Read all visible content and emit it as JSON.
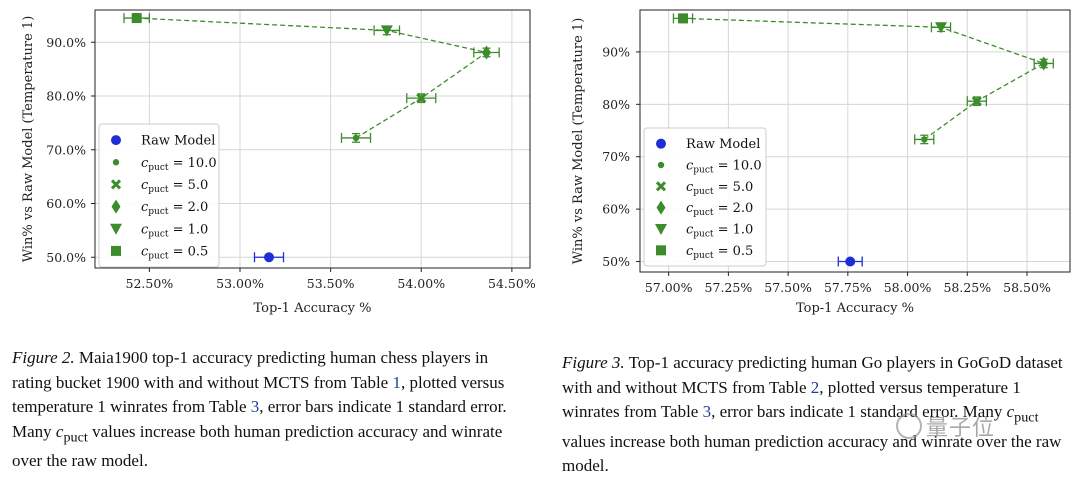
{
  "chart_data": [
    {
      "type": "scatter",
      "xlabel": "Top-1 Accuracy %",
      "ylabel": "Win% vs Raw Model (Temperature 1)",
      "xlim": [
        52.2,
        54.6
      ],
      "ylim": [
        48,
        96
      ],
      "x_ticks": [
        52.5,
        53.0,
        53.5,
        54.0,
        54.5
      ],
      "x_tick_labels": [
        "52.50%",
        "53.00%",
        "53.50%",
        "54.00%",
        "54.50%"
      ],
      "y_ticks": [
        50,
        60,
        70,
        80,
        90
      ],
      "y_tick_labels": [
        "50.0%",
        "60.0%",
        "70.0%",
        "80.0%",
        "90.0%"
      ],
      "grid": true,
      "legend_position": "lower-left",
      "raw_model": {
        "name": "Raw Model",
        "x": 53.16,
        "y": 50.0,
        "xerr": 0.08,
        "color": "#1f2fd6"
      },
      "series": [
        {
          "name_prefix": "c",
          "name_sub": "puct",
          "name_value": "= 10.0",
          "marker": "dot",
          "x": 53.64,
          "y": 72.2,
          "xerr": 0.08,
          "yerr": 0.8
        },
        {
          "name_prefix": "c",
          "name_sub": "puct",
          "name_value": "= 5.0",
          "marker": "x",
          "x": 54.0,
          "y": 79.6,
          "xerr": 0.08,
          "yerr": 0.8
        },
        {
          "name_prefix": "c",
          "name_sub": "puct",
          "name_value": "= 2.0",
          "marker": "diamond",
          "x": 54.36,
          "y": 88.1,
          "xerr": 0.07,
          "yerr": 0.8
        },
        {
          "name_prefix": "c",
          "name_sub": "puct",
          "name_value": "= 1.0",
          "marker": "triangle",
          "x": 53.81,
          "y": 92.2,
          "xerr": 0.07,
          "yerr": 0.8
        },
        {
          "name_prefix": "c",
          "name_sub": "puct",
          "name_value": "= 0.5",
          "marker": "square",
          "x": 52.43,
          "y": 94.5,
          "xerr": 0.07,
          "yerr": 0.8
        }
      ],
      "series_color": "#3d8c2c"
    },
    {
      "type": "scatter",
      "xlabel": "Top-1 Accuracy %",
      "ylabel": "Win% vs Raw Model (Temperature 1)",
      "xlim": [
        56.88,
        58.68
      ],
      "ylim": [
        48,
        98
      ],
      "x_ticks": [
        57.0,
        57.25,
        57.5,
        57.75,
        58.0,
        58.25,
        58.5
      ],
      "x_tick_labels": [
        "57.00%",
        "57.25%",
        "57.50%",
        "57.75%",
        "58.00%",
        "58.25%",
        "58.50%"
      ],
      "y_ticks": [
        50,
        60,
        70,
        80,
        90
      ],
      "y_tick_labels": [
        "50%",
        "60%",
        "70%",
        "80%",
        "90%"
      ],
      "grid": true,
      "legend_position": "lower-left",
      "raw_model": {
        "name": "Raw Model",
        "x": 57.76,
        "y": 50.0,
        "xerr": 0.05,
        "color": "#1f2fd6"
      },
      "series": [
        {
          "name_prefix": "c",
          "name_sub": "puct",
          "name_value": "= 10.0",
          "marker": "dot",
          "x": 58.07,
          "y": 73.3,
          "xerr": 0.04,
          "yerr": 0.8
        },
        {
          "name_prefix": "c",
          "name_sub": "puct",
          "name_value": "= 5.0",
          "marker": "x",
          "x": 58.29,
          "y": 80.6,
          "xerr": 0.04,
          "yerr": 0.8
        },
        {
          "name_prefix": "c",
          "name_sub": "puct",
          "name_value": "= 2.0",
          "marker": "diamond",
          "x": 58.57,
          "y": 87.8,
          "xerr": 0.04,
          "yerr": 0.8
        },
        {
          "name_prefix": "c",
          "name_sub": "puct",
          "name_value": "= 1.0",
          "marker": "triangle",
          "x": 58.14,
          "y": 94.7,
          "xerr": 0.04,
          "yerr": 0.8
        },
        {
          "name_prefix": "c",
          "name_sub": "puct",
          "name_value": "= 0.5",
          "marker": "square",
          "x": 57.06,
          "y": 96.4,
          "xerr": 0.04,
          "yerr": 0.8
        }
      ],
      "series_color": "#3d8c2c"
    }
  ],
  "captions": {
    "left": {
      "label": "Figure 2.",
      "part1": " Maia1900 top-1 accuracy predicting human chess players in rating bucket 1900 with and without MCTS from Table ",
      "ref1": "1",
      "part2": ", plotted versus temperature 1 winrates from Table ",
      "ref2": "3",
      "part3": ", error bars indicate 1 standard error. Many ",
      "c": "c",
      "c_sub": "puct",
      "part4": " values increase both human prediction accuracy and winrate over the raw model."
    },
    "right": {
      "label": "Figure 3.",
      "part1": " Top-1 accuracy predicting human Go players in GoGoD dataset with and without MCTS from Table ",
      "ref1": "2",
      "part2": ", plotted versus temperature 1 winrates from Table ",
      "ref2": "3",
      "part3": ", error bars indicate 1 standard error. Many ",
      "c": "c",
      "c_sub": "puct",
      "part4": " values increase both human prediction accuracy and winrate over the raw model."
    }
  },
  "watermark": "量子位"
}
